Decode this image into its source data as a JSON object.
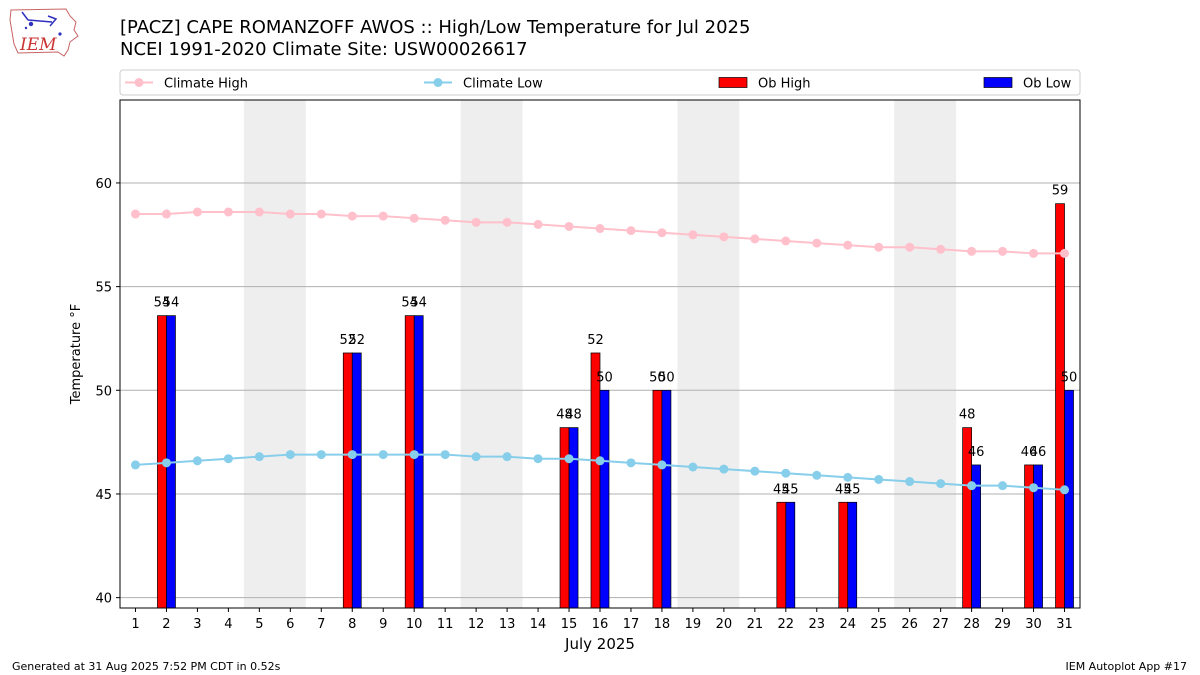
{
  "header": {
    "logo_text": "IEM",
    "title_line1": "[PACZ] CAPE ROMANZOFF AWOS :: High/Low Temperature for Jul 2025",
    "title_line2": "NCEI 1991-2020 Climate Site: USW00026617"
  },
  "footer": {
    "generated": "Generated at 31 Aug 2025 7:52 PM CDT in 0.52s",
    "app": "IEM Autoplot App #17"
  },
  "colors": {
    "climate_high": "#ffc0cb",
    "climate_low": "#87ceeb",
    "ob_high": "#ff0000",
    "ob_low": "#0000ff",
    "weekend_shade": "#eeeeee",
    "grid": "#b0b0b0"
  },
  "chart_data": {
    "type": "bar",
    "title": "[PACZ] CAPE ROMANZOFF AWOS :: High/Low Temperature for Jul 2025",
    "xlabel": "July 2025",
    "ylabel": "Temperature °F",
    "ylim": [
      39.5,
      64.0
    ],
    "xlim": [
      0.5,
      31.5
    ],
    "grid": "y",
    "yticks": [
      40,
      45,
      50,
      55,
      60
    ],
    "days": [
      1,
      2,
      3,
      4,
      5,
      6,
      7,
      8,
      9,
      10,
      11,
      12,
      13,
      14,
      15,
      16,
      17,
      18,
      19,
      20,
      21,
      22,
      23,
      24,
      25,
      26,
      27,
      28,
      29,
      30,
      31
    ],
    "shaded_days": [
      [
        5,
        6
      ],
      [
        12,
        13
      ],
      [
        19,
        20
      ],
      [
        26,
        27
      ]
    ],
    "legend": [
      {
        "label": "Climate High",
        "kind": "line"
      },
      {
        "label": "Climate Low",
        "kind": "line"
      },
      {
        "label": "Ob High",
        "kind": "bar"
      },
      {
        "label": "Ob Low",
        "kind": "bar"
      }
    ],
    "climate_high": [
      58.5,
      58.5,
      58.6,
      58.6,
      58.6,
      58.5,
      58.5,
      58.4,
      58.4,
      58.3,
      58.2,
      58.1,
      58.1,
      58.0,
      57.9,
      57.8,
      57.7,
      57.6,
      57.5,
      57.4,
      57.3,
      57.2,
      57.1,
      57.0,
      56.9,
      56.9,
      56.8,
      56.7,
      56.7,
      56.6,
      56.6
    ],
    "climate_low": [
      46.4,
      46.5,
      46.6,
      46.7,
      46.8,
      46.9,
      46.9,
      46.9,
      46.9,
      46.9,
      46.9,
      46.8,
      46.8,
      46.7,
      46.7,
      46.6,
      46.5,
      46.4,
      46.3,
      46.2,
      46.1,
      46.0,
      45.9,
      45.8,
      45.7,
      45.6,
      45.5,
      45.4,
      45.4,
      45.3,
      45.2
    ],
    "observations": [
      {
        "day": 2,
        "high": 53.6,
        "low": 53.6,
        "high_label": "54",
        "low_label": "54"
      },
      {
        "day": 8,
        "high": 51.8,
        "low": 51.8,
        "high_label": "52",
        "low_label": "52"
      },
      {
        "day": 10,
        "high": 53.6,
        "low": 53.6,
        "high_label": "54",
        "low_label": "54"
      },
      {
        "day": 15,
        "high": 48.2,
        "low": 48.2,
        "high_label": "48",
        "low_label": "48"
      },
      {
        "day": 16,
        "high": 51.8,
        "low": 50.0,
        "high_label": "52",
        "low_label": "50"
      },
      {
        "day": 18,
        "high": 50.0,
        "low": 50.0,
        "high_label": "50",
        "low_label": "50"
      },
      {
        "day": 22,
        "high": 44.6,
        "low": 44.6,
        "high_label": "45",
        "low_label": "45"
      },
      {
        "day": 24,
        "high": 44.6,
        "low": 44.6,
        "high_label": "45",
        "low_label": "45"
      },
      {
        "day": 28,
        "high": 48.2,
        "low": 46.4,
        "high_label": "48",
        "low_label": "46"
      },
      {
        "day": 30,
        "high": 46.4,
        "low": 46.4,
        "high_label": "46",
        "low_label": "46"
      },
      {
        "day": 31,
        "high": 59.0,
        "low": 50.0,
        "high_label": "59",
        "low_label": "50"
      }
    ]
  }
}
